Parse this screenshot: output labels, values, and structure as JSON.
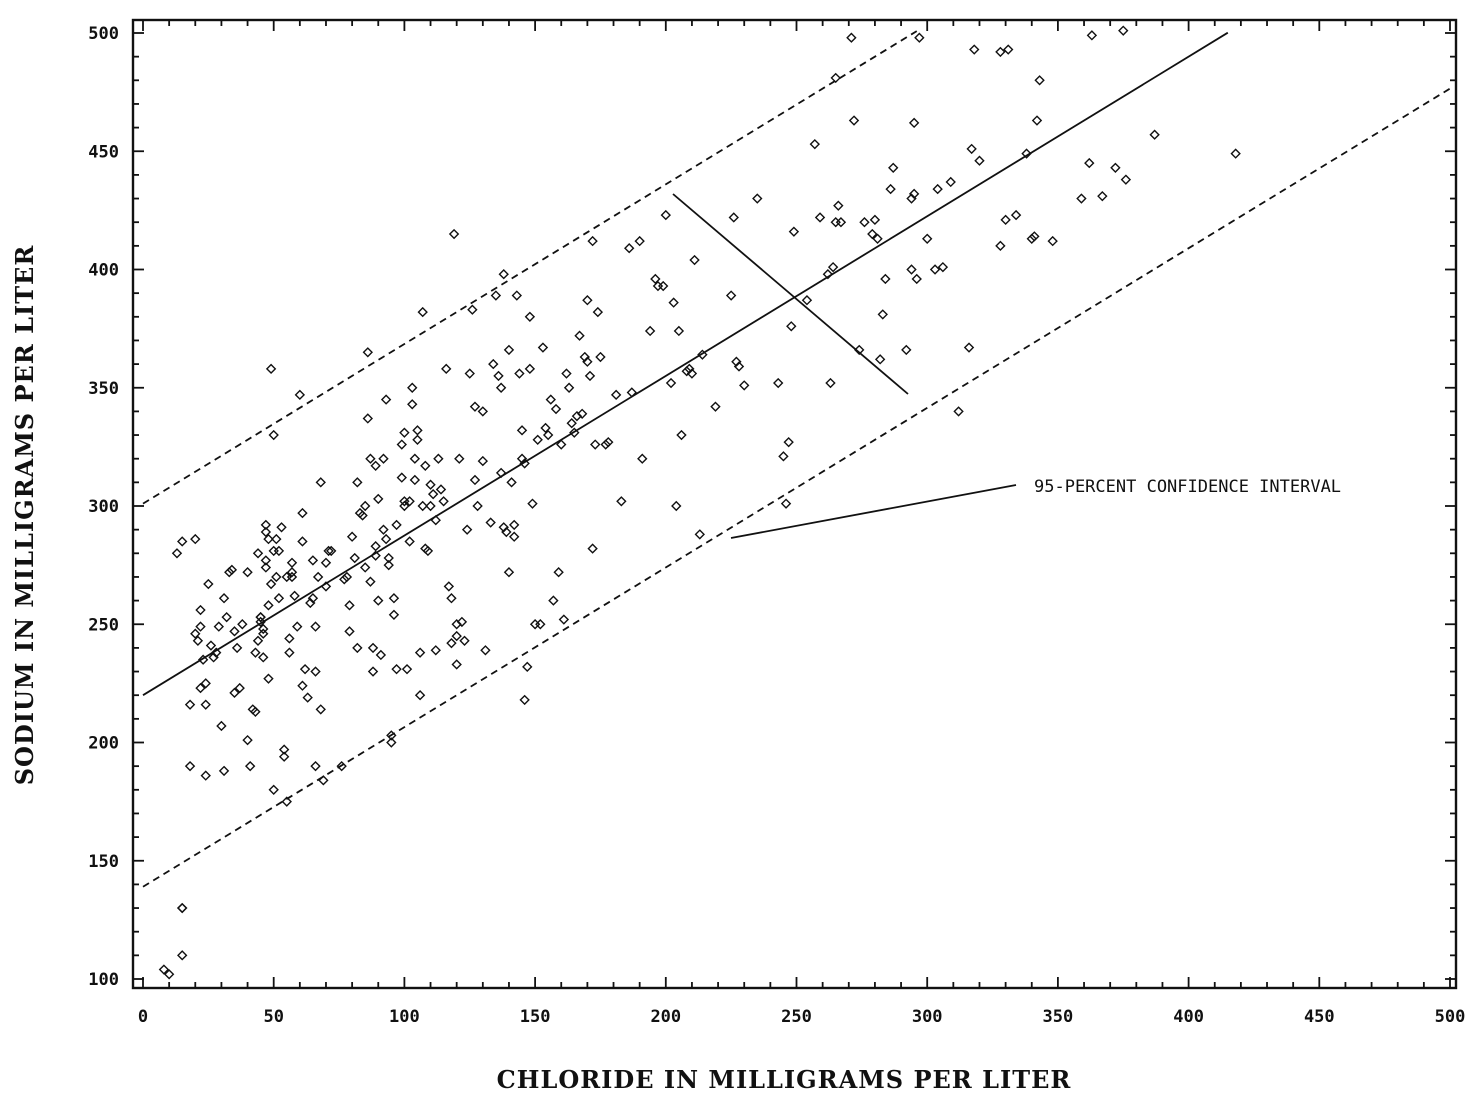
{
  "chart_data": {
    "type": "scatter",
    "xlabel": "CHLORIDE IN MILLIGRAMS PER LITER",
    "ylabel": "SODIUM IN MILLIGRAMS PER LITER",
    "xlim": [
      0,
      500
    ],
    "ylim": [
      100,
      500
    ],
    "xticks": [
      0,
      50,
      100,
      150,
      200,
      250,
      300,
      350,
      400,
      450,
      500
    ],
    "yticks": [
      100,
      150,
      200,
      250,
      300,
      350,
      400,
      450,
      500
    ],
    "grid": false,
    "fit_line": {
      "y_at_x0": 220,
      "slope": 0.675,
      "x_range": [
        0,
        415
      ]
    },
    "confidence_band": {
      "upper": {
        "y_at_x0": 301,
        "slope": 0.675,
        "x_range": [
          0,
          296
        ]
      },
      "lower": {
        "y_at_x0": 139,
        "slope": 0.675,
        "x_range": [
          0,
          500
        ]
      }
    },
    "annotation": "95-PERCENT CONFIDENCE INTERVAL",
    "points": [
      [
        8,
        104
      ],
      [
        10,
        102
      ],
      [
        15,
        110
      ],
      [
        15,
        130
      ],
      [
        15,
        130
      ],
      [
        13,
        280
      ],
      [
        15,
        285
      ],
      [
        20,
        286
      ],
      [
        18,
        216
      ],
      [
        18,
        190
      ],
      [
        20,
        246
      ],
      [
        21,
        243
      ],
      [
        22,
        249
      ],
      [
        22,
        256
      ],
      [
        23,
        235
      ],
      [
        22,
        223
      ],
      [
        24,
        225
      ],
      [
        24,
        186
      ],
      [
        24,
        216
      ],
      [
        25,
        267
      ],
      [
        26,
        241
      ],
      [
        27,
        236
      ],
      [
        28,
        238
      ],
      [
        29,
        249
      ],
      [
        30,
        207
      ],
      [
        31,
        261
      ],
      [
        31,
        188
      ],
      [
        32,
        253
      ],
      [
        33,
        272
      ],
      [
        34,
        273
      ],
      [
        35,
        221
      ],
      [
        35,
        247
      ],
      [
        36,
        240
      ],
      [
        37,
        223
      ],
      [
        38,
        250
      ],
      [
        40,
        272
      ],
      [
        40,
        201
      ],
      [
        41,
        190
      ],
      [
        42,
        214
      ],
      [
        43,
        213
      ],
      [
        43,
        238
      ],
      [
        44,
        280
      ],
      [
        44,
        243
      ],
      [
        45,
        253
      ],
      [
        45,
        253
      ],
      [
        45,
        251
      ],
      [
        46,
        246
      ],
      [
        46,
        248
      ],
      [
        46,
        236
      ],
      [
        47,
        292
      ],
      [
        47,
        289
      ],
      [
        47,
        277
      ],
      [
        47,
        274
      ],
      [
        48,
        286
      ],
      [
        48,
        258
      ],
      [
        48,
        227
      ],
      [
        49,
        267
      ],
      [
        49,
        358
      ],
      [
        50,
        330
      ],
      [
        50,
        180
      ],
      [
        50,
        281
      ],
      [
        51,
        270
      ],
      [
        51,
        286
      ],
      [
        52,
        281
      ],
      [
        52,
        261
      ],
      [
        53,
        291
      ],
      [
        54,
        197
      ],
      [
        54,
        194
      ],
      [
        55,
        175
      ],
      [
        55,
        270
      ],
      [
        56,
        238
      ],
      [
        56,
        244
      ],
      [
        57,
        270
      ],
      [
        57,
        276
      ],
      [
        57,
        272
      ],
      [
        58,
        262
      ],
      [
        59,
        249
      ],
      [
        60,
        347
      ],
      [
        61,
        285
      ],
      [
        61,
        297
      ],
      [
        61,
        224
      ],
      [
        62,
        231
      ],
      [
        63,
        219
      ],
      [
        64,
        259
      ],
      [
        65,
        261
      ],
      [
        65,
        277
      ],
      [
        66,
        249
      ],
      [
        66,
        230
      ],
      [
        66,
        190
      ],
      [
        67,
        270
      ],
      [
        68,
        214
      ],
      [
        68,
        310
      ],
      [
        69,
        184
      ],
      [
        70,
        266
      ],
      [
        70,
        276
      ],
      [
        71,
        281
      ],
      [
        72,
        281
      ],
      [
        76,
        190
      ],
      [
        77,
        269
      ],
      [
        78,
        270
      ],
      [
        79,
        258
      ],
      [
        79,
        247
      ],
      [
        80,
        287
      ],
      [
        81,
        278
      ],
      [
        82,
        240
      ],
      [
        82,
        310
      ],
      [
        83,
        297
      ],
      [
        84,
        296
      ],
      [
        85,
        274
      ],
      [
        85,
        300
      ],
      [
        86,
        337
      ],
      [
        86,
        365
      ],
      [
        87,
        268
      ],
      [
        87,
        320
      ],
      [
        88,
        240
      ],
      [
        88,
        230
      ],
      [
        89,
        279
      ],
      [
        89,
        317
      ],
      [
        89,
        283
      ],
      [
        90,
        303
      ],
      [
        90,
        260
      ],
      [
        91,
        237
      ],
      [
        92,
        290
      ],
      [
        92,
        320
      ],
      [
        93,
        345
      ],
      [
        93,
        286
      ],
      [
        94,
        278
      ],
      [
        94,
        275
      ],
      [
        95,
        203
      ],
      [
        95,
        200
      ],
      [
        96,
        261
      ],
      [
        96,
        254
      ],
      [
        97,
        292
      ],
      [
        97,
        231
      ],
      [
        99,
        312
      ],
      [
        99,
        326
      ],
      [
        100,
        331
      ],
      [
        100,
        302
      ],
      [
        100,
        300
      ],
      [
        101,
        231
      ],
      [
        102,
        285
      ],
      [
        102,
        302
      ],
      [
        103,
        343
      ],
      [
        103,
        350
      ],
      [
        104,
        320
      ],
      [
        104,
        311
      ],
      [
        105,
        332
      ],
      [
        105,
        328
      ],
      [
        106,
        220
      ],
      [
        106,
        238
      ],
      [
        107,
        382
      ],
      [
        107,
        300
      ],
      [
        108,
        317
      ],
      [
        108,
        282
      ],
      [
        109,
        281
      ],
      [
        110,
        309
      ],
      [
        110,
        300
      ],
      [
        111,
        305
      ],
      [
        112,
        239
      ],
      [
        112,
        294
      ],
      [
        113,
        320
      ],
      [
        114,
        307
      ],
      [
        115,
        302
      ],
      [
        116,
        358
      ],
      [
        117,
        266
      ],
      [
        118,
        242
      ],
      [
        118,
        261
      ],
      [
        119,
        415
      ],
      [
        120,
        245
      ],
      [
        120,
        233
      ],
      [
        120,
        250
      ],
      [
        121,
        320
      ],
      [
        122,
        251
      ],
      [
        123,
        243
      ],
      [
        124,
        290
      ],
      [
        125,
        356
      ],
      [
        126,
        383
      ],
      [
        127,
        342
      ],
      [
        127,
        311
      ],
      [
        128,
        300
      ],
      [
        130,
        319
      ],
      [
        130,
        340
      ],
      [
        131,
        239
      ],
      [
        133,
        293
      ],
      [
        134,
        360
      ],
      [
        135,
        389
      ],
      [
        136,
        355
      ],
      [
        137,
        350
      ],
      [
        137,
        314
      ],
      [
        138,
        398
      ],
      [
        138,
        291
      ],
      [
        139,
        289
      ],
      [
        140,
        366
      ],
      [
        140,
        272
      ],
      [
        141,
        310
      ],
      [
        142,
        292
      ],
      [
        142,
        287
      ],
      [
        143,
        389
      ],
      [
        144,
        356
      ],
      [
        145,
        332
      ],
      [
        145,
        320
      ],
      [
        146,
        318
      ],
      [
        146,
        218
      ],
      [
        147,
        232
      ],
      [
        148,
        358
      ],
      [
        148,
        380
      ],
      [
        149,
        301
      ],
      [
        150,
        250
      ],
      [
        151,
        328
      ],
      [
        152,
        250
      ],
      [
        153,
        367
      ],
      [
        154,
        333
      ],
      [
        155,
        330
      ],
      [
        156,
        345
      ],
      [
        157,
        260
      ],
      [
        158,
        341
      ],
      [
        159,
        272
      ],
      [
        160,
        326
      ],
      [
        161,
        252
      ],
      [
        162,
        356
      ],
      [
        163,
        350
      ],
      [
        164,
        335
      ],
      [
        165,
        331
      ],
      [
        166,
        338
      ],
      [
        167,
        372
      ],
      [
        168,
        339
      ],
      [
        169,
        363
      ],
      [
        170,
        387
      ],
      [
        170,
        361
      ],
      [
        171,
        355
      ],
      [
        172,
        282
      ],
      [
        172,
        412
      ],
      [
        173,
        326
      ],
      [
        174,
        382
      ],
      [
        175,
        363
      ],
      [
        177,
        326
      ],
      [
        178,
        327
      ],
      [
        181,
        347
      ],
      [
        183,
        302
      ],
      [
        186,
        409
      ],
      [
        187,
        348
      ],
      [
        190,
        412
      ],
      [
        191,
        320
      ],
      [
        194,
        374
      ],
      [
        196,
        396
      ],
      [
        197,
        393
      ],
      [
        199,
        393
      ],
      [
        200,
        423
      ],
      [
        202,
        352
      ],
      [
        203,
        386
      ],
      [
        204,
        300
      ],
      [
        205,
        374
      ],
      [
        206,
        330
      ],
      [
        208,
        357
      ],
      [
        209,
        358
      ],
      [
        210,
        356
      ],
      [
        211,
        404
      ],
      [
        213,
        288
      ],
      [
        214,
        364
      ],
      [
        219,
        342
      ],
      [
        225,
        389
      ],
      [
        226,
        422
      ],
      [
        227,
        361
      ],
      [
        228,
        359
      ],
      [
        230,
        351
      ],
      [
        235,
        430
      ],
      [
        243,
        352
      ],
      [
        245,
        321
      ],
      [
        246,
        301
      ],
      [
        247,
        327
      ],
      [
        248,
        376
      ],
      [
        249,
        416
      ],
      [
        254,
        387
      ],
      [
        257,
        453
      ],
      [
        259,
        422
      ],
      [
        262,
        398
      ],
      [
        263,
        352
      ],
      [
        264,
        401
      ],
      [
        265,
        481
      ],
      [
        265,
        420
      ],
      [
        266,
        427
      ],
      [
        267,
        420
      ],
      [
        271,
        498
      ],
      [
        272,
        463
      ],
      [
        274,
        366
      ],
      [
        276,
        420
      ],
      [
        279,
        415
      ],
      [
        280,
        421
      ],
      [
        281,
        413
      ],
      [
        282,
        362
      ],
      [
        283,
        381
      ],
      [
        284,
        396
      ],
      [
        286,
        434
      ],
      [
        287,
        443
      ],
      [
        292,
        366
      ],
      [
        294,
        400
      ],
      [
        294,
        430
      ],
      [
        295,
        432
      ],
      [
        295,
        462
      ],
      [
        296,
        396
      ],
      [
        297,
        498
      ],
      [
        300,
        413
      ],
      [
        303,
        400
      ],
      [
        304,
        434
      ],
      [
        306,
        401
      ],
      [
        309,
        437
      ],
      [
        312,
        340
      ],
      [
        316,
        367
      ],
      [
        317,
        451
      ],
      [
        318,
        493
      ],
      [
        320,
        446
      ],
      [
        328,
        410
      ],
      [
        328,
        492
      ],
      [
        330,
        421
      ],
      [
        331,
        493
      ],
      [
        334,
        423
      ],
      [
        338,
        449
      ],
      [
        340,
        413
      ],
      [
        341,
        414
      ],
      [
        342,
        463
      ],
      [
        343,
        480
      ],
      [
        348,
        412
      ],
      [
        359,
        430
      ],
      [
        362,
        445
      ],
      [
        363,
        499
      ],
      [
        367,
        431
      ],
      [
        372,
        443
      ],
      [
        375,
        501
      ],
      [
        376,
        438
      ],
      [
        387,
        457
      ],
      [
        418,
        449
      ]
    ]
  }
}
